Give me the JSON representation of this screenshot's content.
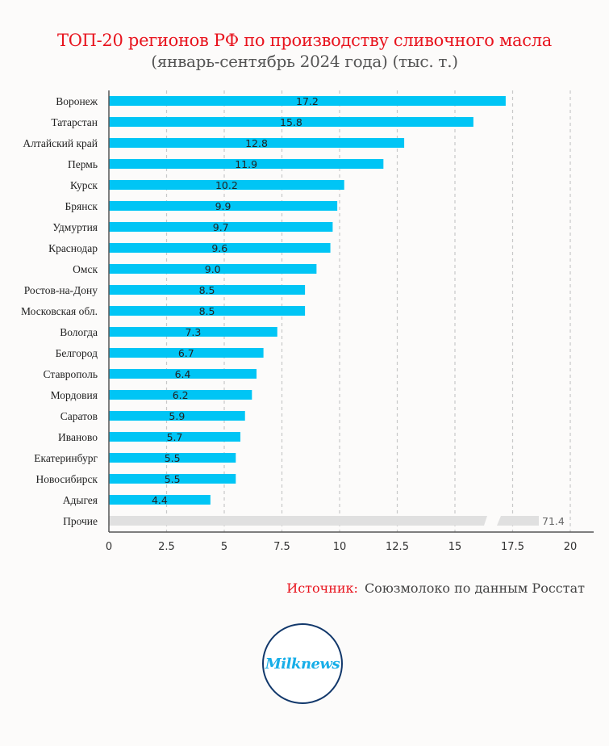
{
  "chart_data": {
    "type": "bar",
    "orientation": "horizontal",
    "title": "ТОП-20 регионов РФ по производству сливочного масла",
    "subtitle": "(январь-сентябрь 2024 года) (тыс. т.)",
    "xlabel": "",
    "ylabel": "",
    "xlim": [
      0,
      20
    ],
    "xticks": [
      "0",
      "2.5",
      "5",
      "7.5",
      "10",
      "12.5",
      "15",
      "17.5",
      "20"
    ],
    "xtick_values": [
      0,
      2.5,
      5,
      7.5,
      10,
      12.5,
      15,
      17.5,
      20
    ],
    "grid": "vertical dashed",
    "categories": [
      "Воронеж",
      "Татарстан",
      "Алтайский край",
      "Пермь",
      "Курск",
      "Брянск",
      "Удмуртия",
      "Краснодар",
      "Омск",
      "Ростов-на-Дону",
      "Московская обл.",
      "Вологда",
      "Белгород",
      "Ставрополь",
      "Мордовия",
      "Саратов",
      "Иваново",
      "Екатеринбург",
      "Новосибирск",
      "Адыгея",
      "Прочие"
    ],
    "values": [
      17.2,
      15.8,
      12.8,
      11.9,
      10.2,
      9.9,
      9.7,
      9.6,
      9.0,
      8.5,
      8.5,
      7.3,
      6.7,
      6.4,
      6.2,
      5.9,
      5.7,
      5.5,
      5.5,
      4.4,
      71.4
    ],
    "value_labels": [
      "17.2",
      "15.8",
      "12.8",
      "11.9",
      "10.2",
      "9.9",
      "9.7",
      "9.6",
      "9.0",
      "8.5",
      "8.5",
      "7.3",
      "6.7",
      "6.4",
      "6.2",
      "5.9",
      "5.7",
      "5.5",
      "5.5",
      "4.4",
      "71.4"
    ],
    "others_index": 20,
    "others_note": "bar truncated with axis break",
    "colors": {
      "bar": "#00c5f5",
      "others_bar": "#e0e0e0",
      "title": "#e8141e",
      "grid": "#c8c8c8"
    }
  },
  "source": {
    "key": "Источник:",
    "text": "Союзмолоко по данным Росстат"
  },
  "logo": {
    "text": "Milknews"
  }
}
